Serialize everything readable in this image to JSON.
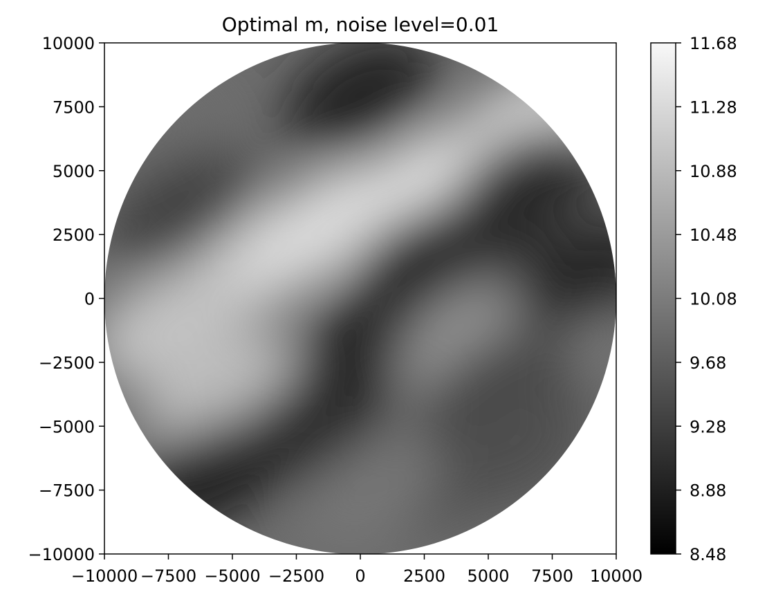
{
  "chart_data": {
    "type": "heatmap",
    "title": "Optimal m, noise level=0.01",
    "xlabel": "",
    "ylabel": "",
    "domain_shape": "circle",
    "domain_radius": 10000,
    "xlim": [
      -10000,
      10000
    ],
    "ylim": [
      -10000,
      10000
    ],
    "x_ticks": [
      -10000,
      -7500,
      -5000,
      -2500,
      0,
      2500,
      5000,
      7500,
      10000
    ],
    "x_tick_labels": [
      "−10000",
      "−7500",
      "−5000",
      "−2500",
      "0",
      "2500",
      "5000",
      "7500",
      "10000"
    ],
    "y_ticks": [
      10000,
      7500,
      5000,
      2500,
      0,
      -2500,
      -5000,
      -7500,
      -10000
    ],
    "y_tick_labels": [
      "10000",
      "7500",
      "5000",
      "2500",
      "0",
      "−2500",
      "−5000",
      "−7500",
      "−10000"
    ],
    "colormap": "gray",
    "colorbar": {
      "range": [
        8.48,
        11.68
      ],
      "ticks": [
        11.68,
        11.28,
        10.88,
        10.48,
        10.08,
        9.68,
        9.28,
        8.88,
        8.48
      ],
      "tick_labels": [
        "11.68",
        "11.28",
        "10.88",
        "10.48",
        "10.08",
        "9.68",
        "9.28",
        "8.88",
        "8.48"
      ]
    },
    "grid": false,
    "features": [
      {
        "x": -4000,
        "y": 1500,
        "value": 11.2
      },
      {
        "x": -7500,
        "y": -1000,
        "value": 11.0
      },
      {
        "x": -1000,
        "y": 3000,
        "value": 11.3
      },
      {
        "x": 3000,
        "y": 4500,
        "value": 11.4
      },
      {
        "x": 6500,
        "y": 6500,
        "value": 11.3
      },
      {
        "x": -5500,
        "y": -3500,
        "value": 10.9
      },
      {
        "x": -8500,
        "y": 6000,
        "value": 9.9
      },
      {
        "x": -7000,
        "y": 3500,
        "value": 9.3
      },
      {
        "x": 0,
        "y": 8000,
        "value": 8.9
      },
      {
        "x": 6500,
        "y": 4500,
        "value": 9.0
      },
      {
        "x": 2500,
        "y": 1500,
        "value": 8.8
      },
      {
        "x": 500,
        "y": -1500,
        "value": 9.0
      },
      {
        "x": 5000,
        "y": 500,
        "value": 9.1
      },
      {
        "x": 4500,
        "y": -1500,
        "value": 10.4
      },
      {
        "x": 7500,
        "y": -1000,
        "value": 10.3
      },
      {
        "x": 5500,
        "y": -3500,
        "value": 9.4
      },
      {
        "x": -2000,
        "y": -5000,
        "value": 9.0
      },
      {
        "x": -6000,
        "y": -7000,
        "value": 8.9
      },
      {
        "x": 2500,
        "y": -7000,
        "value": 9.1
      },
      {
        "x": 500,
        "y": -7500,
        "value": 10.0
      },
      {
        "x": 6000,
        "y": -6000,
        "value": 9.5
      },
      {
        "x": 9000,
        "y": 1000,
        "value": 9.0
      }
    ]
  }
}
